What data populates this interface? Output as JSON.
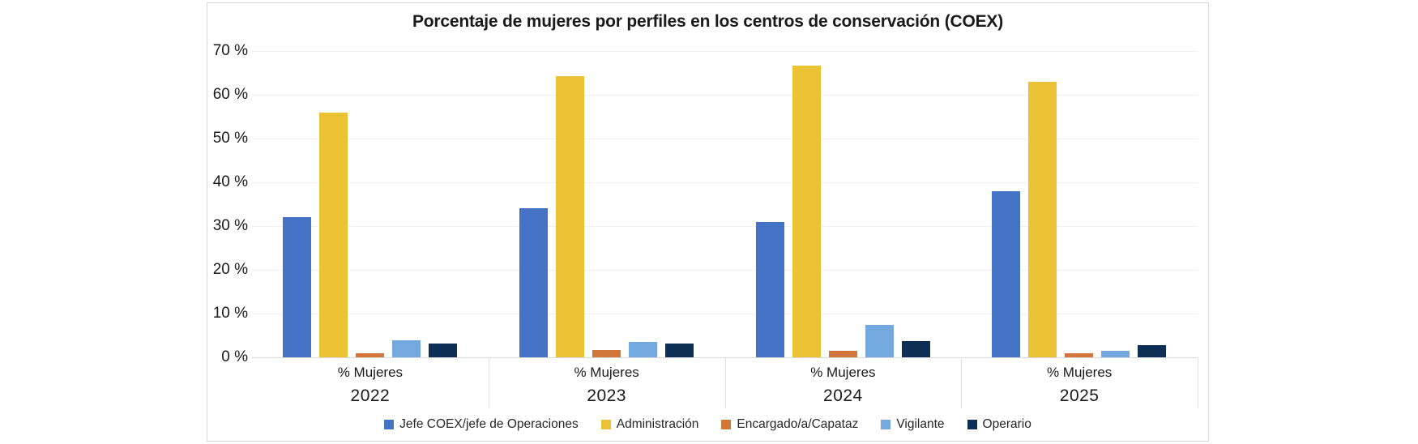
{
  "chart_data": {
    "type": "bar",
    "title": "Porcentaje de mujeres por perfiles en los centros de conservación (COEX)",
    "categories": [
      "2022",
      "2023",
      "2024",
      "2025"
    ],
    "category_sublabel": "% Mujeres",
    "series": [
      {
        "name": "Jefe COEX/jefe de Operaciones",
        "color": "#4472C4",
        "values": [
          32,
          34,
          31,
          38
        ]
      },
      {
        "name": "Administración",
        "color": "#EAC234",
        "values": [
          56,
          64.3,
          66.7,
          63
        ]
      },
      {
        "name": "Encargado/a/Capataz",
        "color": "#D2763A",
        "values": [
          1,
          1.7,
          1.5,
          0.9
        ]
      },
      {
        "name": "Vigilante",
        "color": "#74A9DF",
        "values": [
          3.9,
          3.5,
          7.4,
          1.4
        ]
      },
      {
        "name": "Operario",
        "color": "#0E2F55",
        "values": [
          3.2,
          3.1,
          3.7,
          2.8
        ]
      }
    ],
    "xlabel": "",
    "ylabel": "",
    "ylim": [
      0,
      70
    ],
    "ytick_step": 10,
    "ytick_suffix": " %",
    "grid": true,
    "legend_position": "bottom",
    "colors": {
      "background": "#ffffff",
      "panel_border": "#d6d6d6",
      "gridline": "#f1f1f1",
      "baseline": "#d9d9d9",
      "text": "#1a1a1a"
    }
  }
}
